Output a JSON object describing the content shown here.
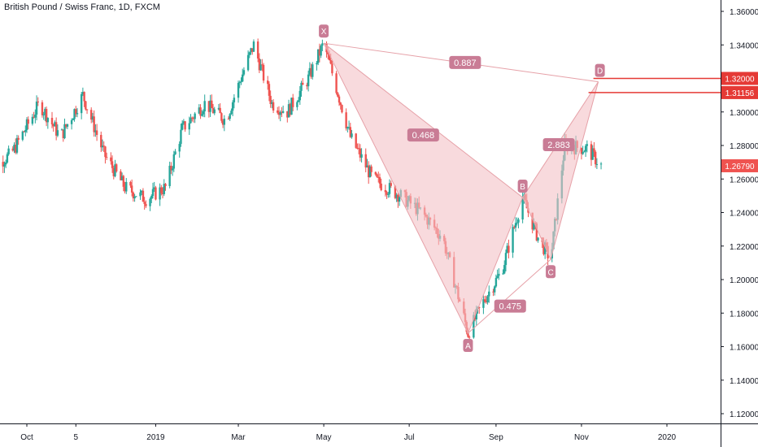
{
  "chart_data": {
    "type": "candlestick",
    "title": "British Pound / Swiss Franc, 1D, FXCM",
    "x_ticks": [
      "Oct",
      "5",
      "2019",
      "Mar",
      "May",
      "Jul",
      "Sep",
      "Nov",
      "2020"
    ],
    "y_ticks": [
      "1.36000",
      "1.34000",
      "1.32000",
      "1.30000",
      "1.28000",
      "1.26000",
      "1.24000",
      "1.22000",
      "1.20000",
      "1.18000",
      "1.16000",
      "1.14000",
      "1.12000"
    ],
    "ylim": [
      1.118,
      1.365
    ],
    "pattern": {
      "name": "harmonic XABCD",
      "points": [
        {
          "label": "X",
          "date": "2019-05-01",
          "price": 1.341
        },
        {
          "label": "A",
          "date": "2019-08-12",
          "price": 1.168
        },
        {
          "label": "B",
          "date": "2019-09-20",
          "price": 1.249
        },
        {
          "label": "C",
          "date": "2019-10-10",
          "price": 1.212
        },
        {
          "label": "D",
          "date": "2019-11-13",
          "price": 1.318
        }
      ],
      "ratios": [
        "0.887",
        "0.468",
        "2.883",
        "0.475"
      ]
    },
    "price_levels": [
      {
        "label": "1.32000",
        "color": "#e53935"
      },
      {
        "label": "1.31156",
        "color": "#e53935"
      }
    ],
    "last_price": {
      "label": "1.26790",
      "color": "#ef5350"
    },
    "up_color": "#26a69a",
    "down_color": "#ef5350"
  }
}
